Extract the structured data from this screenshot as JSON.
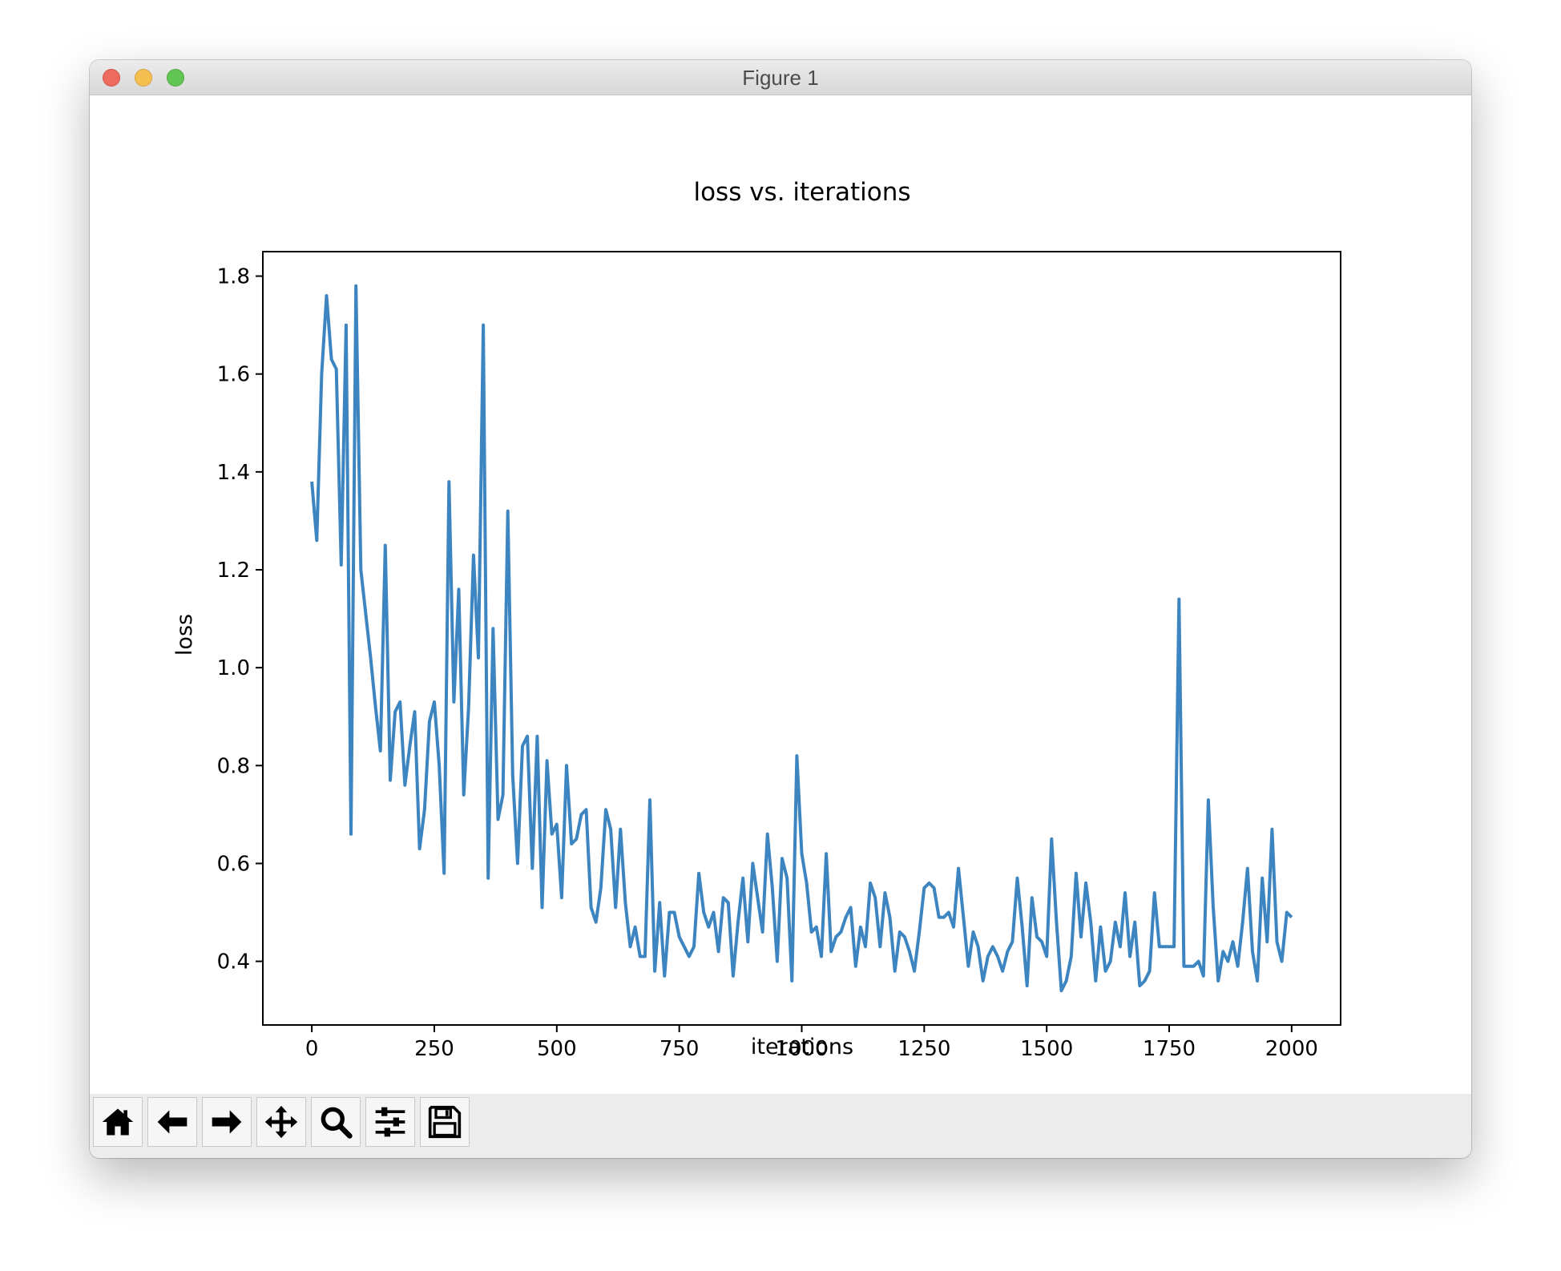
{
  "window": {
    "title": "Figure 1"
  },
  "toolbar": {
    "buttons": [
      {
        "name": "home-button",
        "icon": "home-icon"
      },
      {
        "name": "back-button",
        "icon": "arrow-left-icon"
      },
      {
        "name": "forward-button",
        "icon": "arrow-right-icon"
      },
      {
        "name": "pan-button",
        "icon": "move-icon"
      },
      {
        "name": "zoom-button",
        "icon": "magnifier-icon"
      },
      {
        "name": "configure-subplots-button",
        "icon": "sliders-icon"
      },
      {
        "name": "save-button",
        "icon": "floppy-disk-icon"
      }
    ]
  },
  "colors": {
    "line": "#3d85c0",
    "close": "#ed6a5e",
    "minimize": "#f5bf4f",
    "maximize": "#61c554"
  },
  "chart_data": {
    "type": "line",
    "title": "loss vs. iterations",
    "xlabel": "iterations",
    "ylabel": "loss",
    "xlim": [
      -100,
      2100
    ],
    "ylim": [
      0.27,
      1.85
    ],
    "xticks": [
      0,
      250,
      500,
      750,
      1000,
      1250,
      1500,
      1750,
      2000
    ],
    "xtick_labels": [
      "0",
      "250",
      "500",
      "750",
      "1000",
      "1250",
      "1500",
      "1750",
      "2000"
    ],
    "yticks": [
      0.4,
      0.6,
      0.8,
      1.0,
      1.2,
      1.4,
      1.6,
      1.8
    ],
    "ytick_labels": [
      "0.4",
      "0.6",
      "0.8",
      "1.0",
      "1.2",
      "1.4",
      "1.6",
      "1.8"
    ],
    "grid": false,
    "series": [
      {
        "x": [
          0,
          10,
          20,
          30,
          40,
          50,
          60,
          70,
          80,
          90,
          100,
          110,
          120,
          130,
          140,
          150,
          160,
          170,
          180,
          190,
          200,
          210,
          220,
          230,
          240,
          250,
          260,
          270,
          280,
          290,
          300,
          310,
          320,
          330,
          340,
          350,
          360,
          370,
          380,
          390,
          400,
          410,
          420,
          430,
          440,
          450,
          460,
          470,
          480,
          490,
          500,
          510,
          520,
          530,
          540,
          550,
          560,
          570,
          580,
          590,
          600,
          610,
          620,
          630,
          640,
          650,
          660,
          670,
          680,
          690,
          700,
          710,
          720,
          730,
          740,
          750,
          760,
          770,
          780,
          790,
          800,
          810,
          820,
          830,
          840,
          850,
          860,
          870,
          880,
          890,
          900,
          910,
          920,
          930,
          940,
          950,
          960,
          970,
          980,
          990,
          1000,
          1010,
          1020,
          1030,
          1040,
          1050,
          1060,
          1070,
          1080,
          1090,
          1100,
          1110,
          1120,
          1130,
          1140,
          1150,
          1160,
          1170,
          1180,
          1190,
          1200,
          1210,
          1220,
          1230,
          1240,
          1250,
          1260,
          1270,
          1280,
          1290,
          1300,
          1310,
          1320,
          1330,
          1340,
          1350,
          1360,
          1370,
          1380,
          1390,
          1400,
          1410,
          1420,
          1430,
          1440,
          1450,
          1460,
          1470,
          1480,
          1490,
          1500,
          1510,
          1520,
          1530,
          1540,
          1550,
          1560,
          1570,
          1580,
          1590,
          1600,
          1610,
          1620,
          1630,
          1640,
          1650,
          1660,
          1670,
          1680,
          1690,
          1700,
          1710,
          1720,
          1730,
          1740,
          1750,
          1760,
          1770,
          1780,
          1790,
          1800,
          1810,
          1820,
          1830,
          1840,
          1850,
          1860,
          1870,
          1880,
          1890,
          1900,
          1910,
          1920,
          1930,
          1940,
          1950,
          1960,
          1970,
          1980,
          1990,
          2000
        ],
        "y": [
          1.38,
          1.26,
          1.6,
          1.76,
          1.63,
          1.61,
          1.21,
          1.7,
          0.66,
          1.78,
          1.2,
          1.11,
          1.02,
          0.92,
          0.83,
          1.25,
          0.77,
          0.91,
          0.93,
          0.76,
          0.84,
          0.91,
          0.63,
          0.71,
          0.89,
          0.93,
          0.8,
          0.58,
          1.38,
          0.93,
          1.16,
          0.74,
          0.92,
          1.23,
          1.02,
          1.7,
          0.57,
          1.08,
          0.69,
          0.74,
          1.32,
          0.78,
          0.6,
          0.84,
          0.86,
          0.59,
          0.86,
          0.51,
          0.81,
          0.66,
          0.68,
          0.53,
          0.8,
          0.64,
          0.65,
          0.7,
          0.71,
          0.51,
          0.48,
          0.55,
          0.71,
          0.67,
          0.51,
          0.67,
          0.52,
          0.43,
          0.47,
          0.41,
          0.41,
          0.73,
          0.38,
          0.52,
          0.37,
          0.5,
          0.5,
          0.45,
          0.43,
          0.41,
          0.43,
          0.58,
          0.5,
          0.47,
          0.5,
          0.42,
          0.53,
          0.52,
          0.37,
          0.48,
          0.57,
          0.44,
          0.6,
          0.53,
          0.46,
          0.66,
          0.55,
          0.4,
          0.61,
          0.57,
          0.36,
          0.82,
          0.62,
          0.56,
          0.46,
          0.47,
          0.41,
          0.62,
          0.42,
          0.45,
          0.46,
          0.49,
          0.51,
          0.39,
          0.47,
          0.43,
          0.56,
          0.53,
          0.43,
          0.54,
          0.49,
          0.38,
          0.46,
          0.45,
          0.42,
          0.38,
          0.46,
          0.55,
          0.56,
          0.55,
          0.49,
          0.49,
          0.5,
          0.47,
          0.59,
          0.49,
          0.39,
          0.46,
          0.43,
          0.36,
          0.41,
          0.43,
          0.41,
          0.38,
          0.42,
          0.44,
          0.57,
          0.47,
          0.35,
          0.53,
          0.45,
          0.44,
          0.41,
          0.65,
          0.48,
          0.34,
          0.36,
          0.41,
          0.58,
          0.45,
          0.56,
          0.48,
          0.36,
          0.47,
          0.38,
          0.4,
          0.48,
          0.43,
          0.54,
          0.41,
          0.48,
          0.35,
          0.36,
          0.38,
          0.54,
          0.43,
          0.43,
          0.43,
          0.43,
          1.14,
          0.39,
          0.39,
          0.39,
          0.4,
          0.37,
          0.73,
          0.51,
          0.36,
          0.42,
          0.4,
          0.44,
          0.39,
          0.48,
          0.59,
          0.42,
          0.36,
          0.57,
          0.44,
          0.67,
          0.44,
          0.4,
          0.5,
          0.49
        ]
      }
    ]
  }
}
